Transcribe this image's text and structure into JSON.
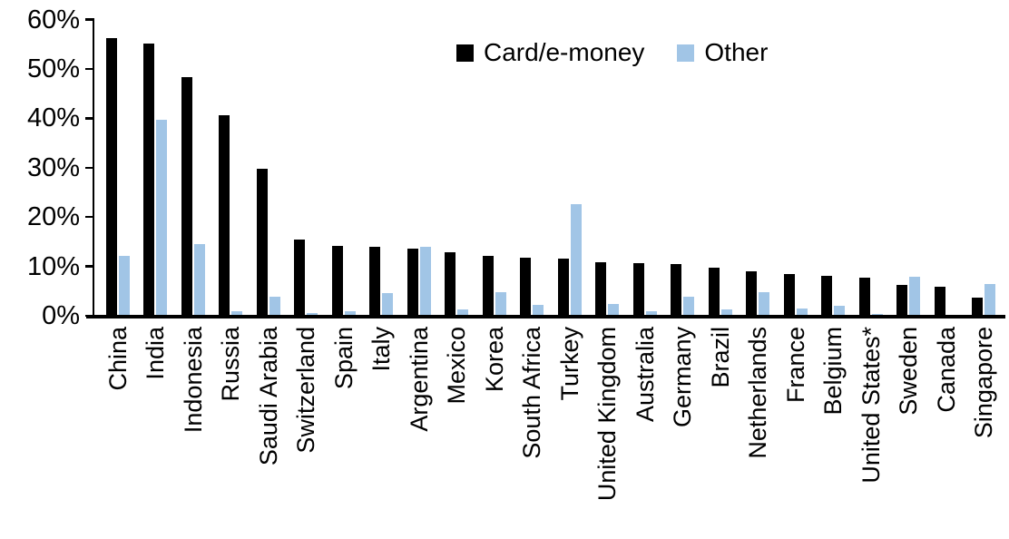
{
  "chart_data": {
    "type": "bar",
    "title": "",
    "xlabel": "",
    "ylabel": "",
    "ylim": [
      0,
      60
    ],
    "grid": false,
    "legend_position": "top-center",
    "y_ticks": [
      {
        "label": "60%",
        "value": 60
      },
      {
        "label": "50%",
        "value": 50
      },
      {
        "label": "40%",
        "value": 40
      },
      {
        "label": "30%",
        "value": 30
      },
      {
        "label": "20%",
        "value": 20
      },
      {
        "label": "10%",
        "value": 10
      },
      {
        "label": "0%",
        "value": 0
      }
    ],
    "categories": [
      "China",
      "India",
      "Indonesia",
      "Russia",
      "Saudi Arabia",
      "Switzerland",
      "Spain",
      "Italy",
      "Argentina",
      "Mexico",
      "Korea",
      "South Africa",
      "Turkey",
      "United Kingdom",
      "Australia",
      "Germany",
      "Brazil",
      "Netherlands",
      "France",
      "Belgium",
      "United States*",
      "Sweden",
      "Canada",
      "Singapore"
    ],
    "series": [
      {
        "name": "Card/e-money",
        "color": "#000000",
        "values": [
          56.3,
          55.1,
          48.4,
          40.6,
          29.8,
          15.5,
          14.1,
          13.9,
          13.6,
          12.9,
          12.1,
          11.8,
          11.6,
          10.9,
          10.7,
          10.4,
          9.7,
          9.1,
          8.5,
          8.0,
          7.7,
          6.3,
          5.8,
          3.6
        ]
      },
      {
        "name": "Other",
        "color": "#a1c5e6",
        "values": [
          12.1,
          39.7,
          14.6,
          0.9,
          3.8,
          0.6,
          0.9,
          4.6,
          13.9,
          1.3,
          4.7,
          2.2,
          22.6,
          2.4,
          0.9,
          3.9,
          1.2,
          4.7,
          1.5,
          2.0,
          0.3,
          7.9,
          0.0,
          6.5
        ]
      }
    ]
  }
}
